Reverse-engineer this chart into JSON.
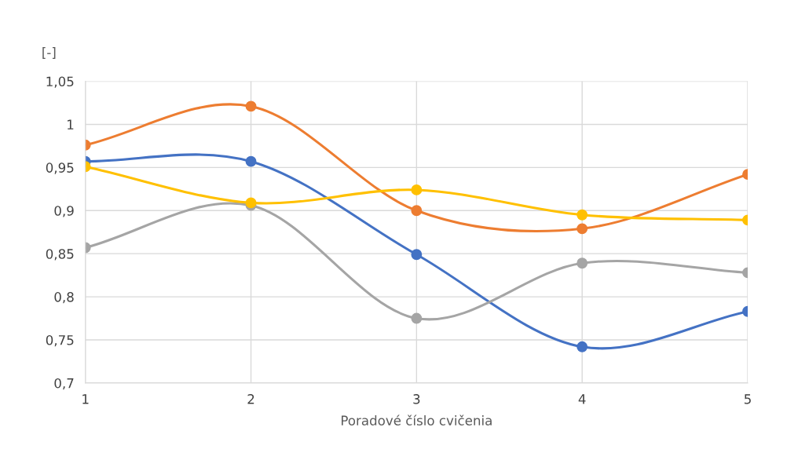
{
  "chart_data": {
    "type": "line",
    "xlabel": "Poradové číslo cvičenia",
    "ylabel": "[-]",
    "x": [
      1,
      2,
      3,
      4,
      5
    ],
    "series": [
      {
        "color": "#4472c4",
        "values": [
          0.957,
          0.957,
          0.849,
          0.742,
          0.783
        ]
      },
      {
        "color": "#ed7d31",
        "values": [
          0.976,
          1.021,
          0.9,
          0.879,
          0.942
        ]
      },
      {
        "color": "#a5a5a5",
        "values": [
          0.857,
          0.906,
          0.775,
          0.839,
          0.828
        ]
      },
      {
        "color": "#ffc000",
        "values": [
          0.951,
          0.909,
          0.924,
          0.895,
          0.889
        ]
      }
    ],
    "xlim": [
      1,
      5
    ],
    "xticks": [
      1,
      2,
      3,
      4,
      5
    ],
    "ylim": [
      0.7,
      1.05
    ],
    "yticks": [
      {
        "value": 0.7,
        "label": "0,7"
      },
      {
        "value": 0.75,
        "label": "0,75"
      },
      {
        "value": 0.8,
        "label": "0,8"
      },
      {
        "value": 0.85,
        "label": "0,85"
      },
      {
        "value": 0.9,
        "label": "0,9"
      },
      {
        "value": 0.95,
        "label": "0,95"
      },
      {
        "value": 1,
        "label": "1"
      },
      {
        "value": 1.05,
        "label": "1,05"
      }
    ],
    "grid": true,
    "marker": "circle",
    "line_style": "solid",
    "legend": false
  }
}
